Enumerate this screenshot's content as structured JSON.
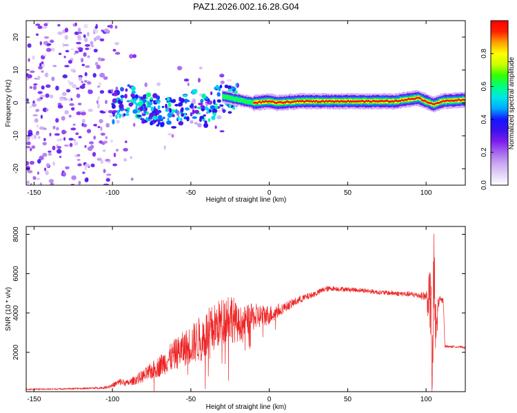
{
  "title": "PAZ1.2026.002.16.28.G04",
  "colors": {
    "snr_line": "#ee2222",
    "axis": "#000000",
    "background": "#ffffff",
    "colormap": [
      "#ffffff",
      "#e3d4f8",
      "#c9a6f2",
      "#a466ee",
      "#7d1bee",
      "#3a11ee",
      "#1515ff",
      "#00aaff",
      "#00e6e6",
      "#00ff80",
      "#33ff00",
      "#ccff00",
      "#ffff00",
      "#ffa000",
      "#ff2000",
      "#ff0000"
    ]
  },
  "chart_data": [
    {
      "type": "heatmap",
      "name": "spectrogram",
      "title": "",
      "xlabel": "Height of straight line (km)",
      "ylabel": "Frequency (Hz)",
      "xlim": [
        -155,
        125
      ],
      "ylim": [
        -25,
        25
      ],
      "xticks": [
        -150,
        -100,
        -50,
        0,
        50,
        100
      ],
      "yticks": [
        -20,
        -10,
        0,
        10,
        20
      ],
      "colorbar": {
        "label": "Normalized spectral amplitude",
        "range": [
          0,
          1
        ],
        "ticks": [
          "0.0",
          "0.2",
          "0.4",
          "0.6",
          "0.8"
        ],
        "tick_values": [
          0.0,
          0.2,
          0.4,
          0.6,
          0.8
        ]
      },
      "ridge": [
        {
          "x": -100,
          "y": -1.5
        },
        {
          "x": -90,
          "y": 1.0
        },
        {
          "x": -80,
          "y": -1.5
        },
        {
          "x": -70,
          "y": -2.5
        },
        {
          "x": -60,
          "y": -3.0
        },
        {
          "x": -50,
          "y": -1.0
        },
        {
          "x": -45,
          "y": 0.0
        },
        {
          "x": -40,
          "y": -3.0
        },
        {
          "x": -35,
          "y": -0.5
        },
        {
          "x": -30,
          "y": 2.0
        },
        {
          "x": -20,
          "y": 1.0
        },
        {
          "x": -10,
          "y": 0.0
        },
        {
          "x": 0,
          "y": 0.5
        },
        {
          "x": 5,
          "y": 0.0
        },
        {
          "x": 20,
          "y": 0.5
        },
        {
          "x": 50,
          "y": 0.5
        },
        {
          "x": 80,
          "y": 0.5
        },
        {
          "x": 95,
          "y": 1.5
        },
        {
          "x": 105,
          "y": -0.5
        },
        {
          "x": 110,
          "y": 0.5
        },
        {
          "x": 125,
          "y": 1.0
        }
      ]
    },
    {
      "type": "line",
      "name": "snr",
      "title": "",
      "xlabel": "Height of straight line (km)",
      "ylabel": "SNR (10 * v/v)",
      "xlim": [
        -155,
        125
      ],
      "ylim": [
        0,
        8400
      ],
      "xticks": [
        -150,
        -100,
        -50,
        0,
        50,
        100
      ],
      "yticks": [
        2000,
        4000,
        6000,
        8000
      ],
      "series": [
        {
          "name": "SNR",
          "x": [
            -155,
            -140,
            -120,
            -105,
            -100,
            -95,
            -90,
            -80,
            -70,
            -60,
            -50,
            -40,
            -30,
            -25,
            -20,
            -10,
            0,
            10,
            20,
            30,
            35,
            40,
            50,
            60,
            70,
            80,
            90,
            95,
            100,
            103,
            104,
            105,
            106,
            108,
            110,
            111,
            112,
            120,
            125
          ],
          "y": [
            120,
            130,
            160,
            200,
            320,
            500,
            430,
            800,
            1300,
            1900,
            2400,
            2900,
            3600,
            3900,
            3400,
            3800,
            3900,
            4300,
            4700,
            5000,
            5200,
            5250,
            5200,
            5150,
            5050,
            5000,
            4950,
            4900,
            4850,
            4500,
            300,
            6500,
            2800,
            4600,
            4650,
            4600,
            2300,
            2280,
            2250
          ],
          "amplitude": [
            30,
            30,
            40,
            60,
            120,
            200,
            150,
            350,
            550,
            800,
            1000,
            1300,
            1200,
            1400,
            900,
            700,
            500,
            250,
            200,
            150,
            150,
            130,
            120,
            120,
            120,
            130,
            140,
            160,
            250,
            2000,
            2400,
            2400,
            1800,
            300,
            150,
            150,
            60,
            50,
            50
          ]
        }
      ]
    }
  ]
}
